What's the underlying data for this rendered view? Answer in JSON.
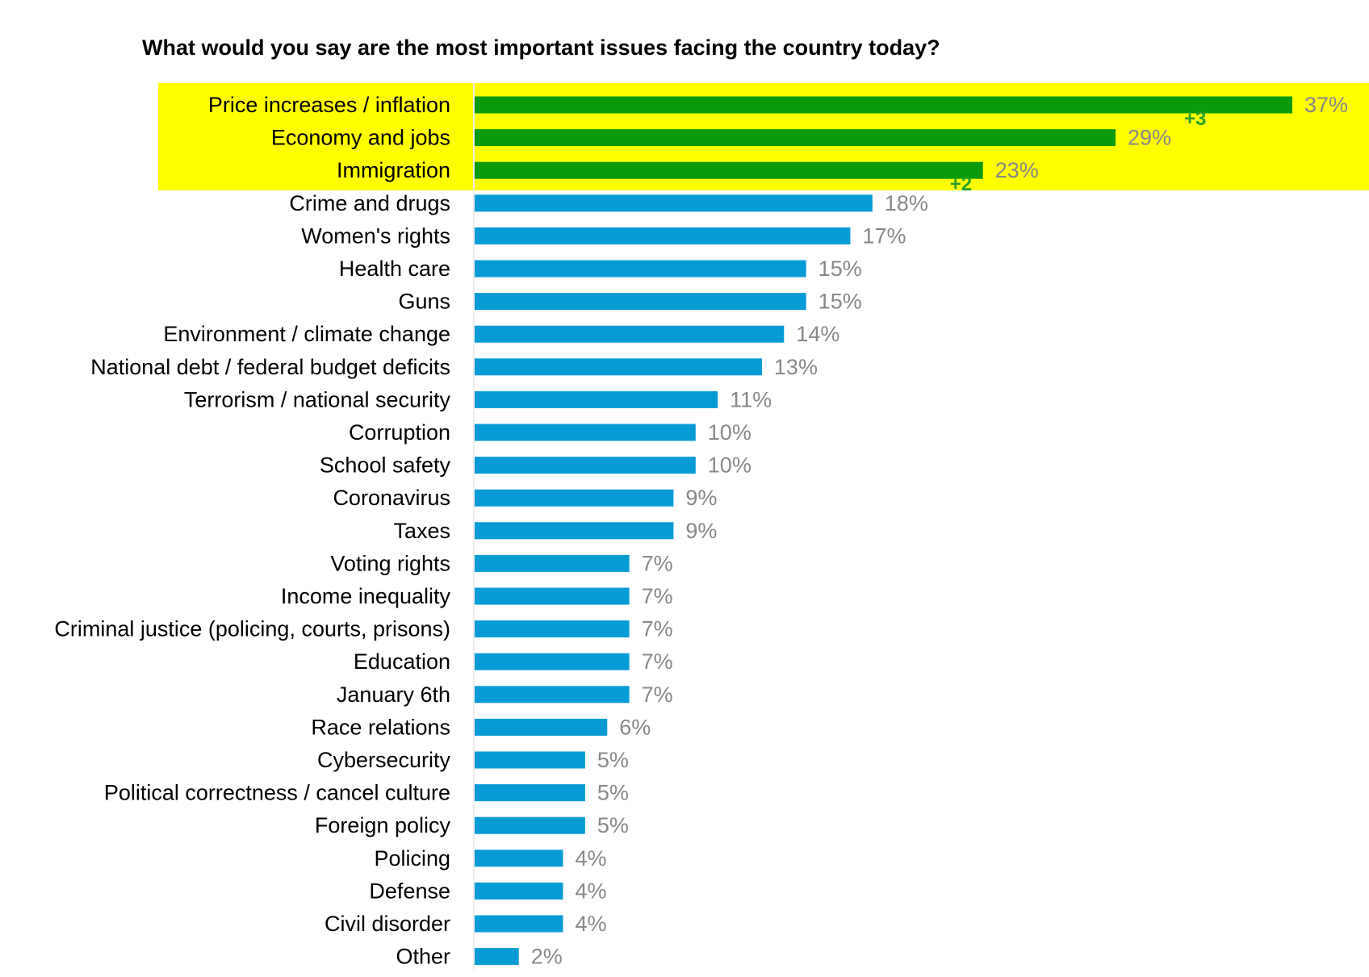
{
  "colors": {
    "highlight": "#ffff00",
    "top_bar": "#0a9a0a",
    "bar": "#079bd6",
    "value_text": "#888888",
    "change_text": "#2aa02a"
  },
  "chart_data": {
    "type": "bar",
    "orientation": "horizontal",
    "title": "What would you say are the most important issues facing the country today?",
    "xlim": [
      0,
      37
    ],
    "grid": false,
    "highlighted_count": 3,
    "categories": [
      "Price increases / inflation",
      "Economy and jobs",
      "Immigration",
      "Crime and drugs",
      "Women's rights",
      "Health care",
      "Guns",
      "Environment / climate change",
      "National debt / federal budget deficits",
      "Terrorism / national security",
      "Corruption",
      "School safety",
      "Coronavirus",
      "Taxes",
      "Voting rights",
      "Income inequality",
      "Criminal justice (policing, courts, prisons)",
      "Education",
      "January 6th",
      "Race relations",
      "Cybersecurity",
      "Political correctness / cancel culture",
      "Foreign policy",
      "Policing",
      "Defense",
      "Civil disorder",
      "Other"
    ],
    "values": [
      37,
      29,
      23,
      18,
      17,
      15,
      15,
      14,
      13,
      11,
      10,
      10,
      9,
      9,
      7,
      7,
      7,
      7,
      7,
      6,
      5,
      5,
      5,
      4,
      4,
      4,
      2
    ],
    "value_labels": [
      "37%",
      "29%",
      "23%",
      "18%",
      "17%",
      "15%",
      "15%",
      "14%",
      "13%",
      "11%",
      "10%",
      "10%",
      "9%",
      "9%",
      "7%",
      "7%",
      "7%",
      "7%",
      "7%",
      "6%",
      "5%",
      "5%",
      "5%",
      "4%",
      "4%",
      "4%",
      "2%"
    ],
    "annotations": [
      {
        "category": "Price increases / inflation",
        "text": "+3"
      },
      {
        "category": "Immigration",
        "text": "+2"
      }
    ]
  }
}
